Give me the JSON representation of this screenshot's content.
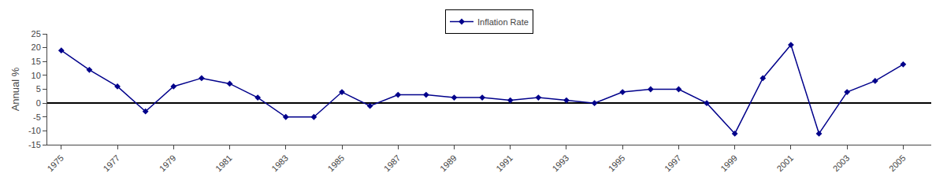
{
  "chart_data": {
    "type": "line",
    "y_label": "Annual %",
    "x": [
      1975,
      1976,
      1977,
      1978,
      1979,
      1980,
      1981,
      1982,
      1983,
      1984,
      1985,
      1986,
      1987,
      1988,
      1989,
      1990,
      1991,
      1992,
      1993,
      1994,
      1995,
      1996,
      1997,
      1998,
      1999,
      2000,
      2001,
      2002,
      2003,
      2004,
      2005
    ],
    "series": [
      {
        "name": "Inflation Rate",
        "color": "#00008B",
        "marker": "diamond",
        "values": [
          19,
          12,
          6,
          -3,
          6,
          9,
          7,
          2,
          -5,
          -5,
          4,
          -1,
          3,
          3,
          2,
          2,
          1,
          2,
          1,
          0,
          4,
          5,
          5,
          0,
          -11,
          9,
          21,
          -11,
          4,
          8,
          14
        ]
      }
    ],
    "xlim": [
      1974.5,
      2006
    ],
    "xticks": [
      1975,
      1977,
      1979,
      1981,
      1983,
      1985,
      1987,
      1989,
      1991,
      1993,
      1995,
      1997,
      1999,
      2001,
      2003,
      2005
    ],
    "ylim": [
      -15,
      25
    ],
    "yticks": [
      -15,
      -10,
      -5,
      0,
      5,
      10,
      15,
      20,
      25
    ],
    "grid": false,
    "legend": "upper center"
  }
}
